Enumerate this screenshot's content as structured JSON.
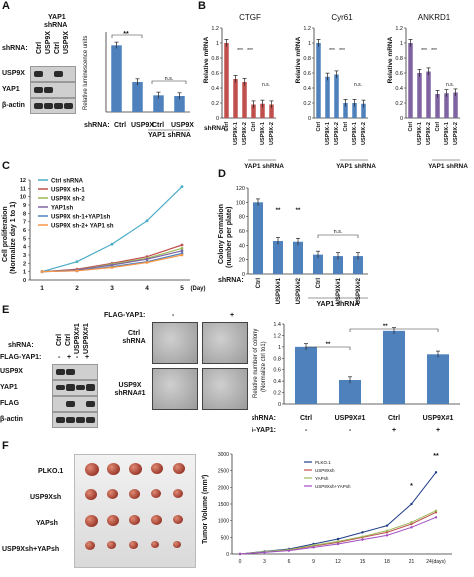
{
  "panels": {
    "A": "A",
    "B": "B",
    "C": "C",
    "D": "D",
    "E": "E",
    "F": "F"
  },
  "common": {
    "shrna": "shRNA:",
    "ctrl": "Ctrl",
    "usp9x": "USP9X",
    "yap1_shrna": "YAP1 shRNA",
    "flag_yap1": "FLAG-YAP1:",
    "sig": "**",
    "sig3": "***",
    "ns": "n.s."
  },
  "panelA": {
    "blot_header": [
      "YAP1",
      "shRNA"
    ],
    "lanes": [
      "Ctrl",
      "USP9X",
      "Ctrl",
      "USP9X"
    ],
    "bands": [
      "USP9X",
      "YAP1",
      "β-actin"
    ],
    "ylabel": "Relative luminescence units",
    "xlabels": [
      "Ctrl",
      "USP9X",
      "Ctrl",
      "USP9X"
    ]
  },
  "panelB": {
    "titles": [
      "CTGF",
      "Cyr61",
      "ANKRD1"
    ],
    "ylabel": "Relative mRNA",
    "xlabels": [
      "Ctrl",
      "USP9X-1",
      "USP9X-2",
      "Ctrl",
      "USP9X-1",
      "USP9X-2"
    ]
  },
  "panelC": {
    "ylabel": "Cell proliferation",
    "ylabel2": "(Normalize day 1 to 1)",
    "xaxis_suffix": "(Day)",
    "yticks": [
      "0",
      "1",
      "2",
      "3",
      "4",
      "5",
      "6",
      "7",
      "8",
      "9",
      "10",
      "11",
      "12"
    ],
    "xticks": [
      "1",
      "2",
      "3",
      "4",
      "5"
    ],
    "legend": [
      "Ctrl shRNA",
      "USP9X sh-1",
      "USP9X sh-2",
      "YAP1sh",
      "USP9X sh-1+YAP1sh",
      "USP9X sh-2+ YAP1 sh"
    ]
  },
  "panelD": {
    "ylabel": "Colony Formation",
    "ylabel2": "(number per plate)",
    "yticks": [
      "0",
      "20",
      "40",
      "60",
      "80",
      "100",
      "120"
    ],
    "xlabels": [
      "Ctrl",
      "USP9X#1",
      "USP9X#2",
      "Ctrl",
      "USP9X#1",
      "USP9X#2"
    ]
  },
  "panelE": {
    "blot_lanes": [
      "Ctrl",
      "Ctrl",
      "USP9X#1",
      "USP9X#1"
    ],
    "flag_signs": [
      "-",
      "+",
      "-",
      "+"
    ],
    "bands": [
      "USP9X",
      "YAP1",
      "FLAG",
      "β-actin"
    ],
    "micro_header": [
      "-",
      "+"
    ],
    "micro_rows": [
      "Ctrl shRNA",
      "USP9X shRNA#1"
    ],
    "ylabel": "Relative number of colony",
    "ylabel2": "(Normalize ctrl to1)",
    "yticks": [
      "0",
      "0.2",
      "0.4",
      "0.6",
      "0.8",
      "1",
      "1.2",
      "1.4"
    ],
    "xlabels": [
      "Ctrl",
      "USP9X#1",
      "Ctrl",
      "USP9X#1"
    ],
    "flag_row": [
      "-",
      "-",
      "+",
      "+"
    ]
  },
  "panelF": {
    "rows": [
      "PLKO.1",
      "USP9Xsh",
      "YAPsh",
      "USP9Xsh+YAPsh"
    ],
    "ylabel": "Tumor Volume (mm³)",
    "yticks": [
      "0",
      "500",
      "1000",
      "1500",
      "2000",
      "2500",
      "3000"
    ],
    "xticks": [
      "0",
      "3",
      "6",
      "9",
      "12",
      "15",
      "18",
      "21",
      "24(days)"
    ],
    "legend": [
      "PLKO.1",
      "USP9Xsh",
      "YAPsh",
      "USP9Xsh+YAPsh"
    ]
  },
  "colors": {
    "blue": "#4f81bd",
    "red": "#c0504d",
    "purple": "#8064a2",
    "green": "#9bbb59",
    "orange": "#f79646",
    "lightblue": "#4bacc6",
    "darkblue": "#1f3c88",
    "magenta": "#a14dc4"
  },
  "chart_data": [
    {
      "type": "bar",
      "id": "A",
      "categories": [
        "Ctrl",
        "USP9X",
        "Ctrl",
        "USP9X"
      ],
      "values": [
        1.0,
        0.45,
        0.25,
        0.24
      ],
      "ylim": [
        0,
        1.2
      ]
    },
    {
      "type": "bar",
      "id": "B-CTGF",
      "title": "CTGF",
      "categories": [
        "Ctrl",
        "USP9X-1",
        "USP9X-2",
        "Ctrl",
        "USP9X-1",
        "USP9X-2"
      ],
      "values": [
        1.0,
        0.52,
        0.48,
        0.18,
        0.19,
        0.18
      ],
      "ylim": [
        0,
        1.2
      ]
    },
    {
      "type": "bar",
      "id": "B-Cyr61",
      "title": "Cyr61",
      "categories": [
        "Ctrl",
        "USP9X-1",
        "USP9X-2",
        "Ctrl",
        "USP9X-1",
        "USP9X-2"
      ],
      "values": [
        1.0,
        0.55,
        0.58,
        0.2,
        0.2,
        0.19
      ],
      "ylim": [
        0,
        1.2
      ]
    },
    {
      "type": "bar",
      "id": "B-ANKRD1",
      "title": "ANKRD1",
      "categories": [
        "Ctrl",
        "USP9X-1",
        "USP9X-2",
        "Ctrl",
        "USP9X-1",
        "USP9X-2"
      ],
      "values": [
        1.0,
        0.6,
        0.62,
        0.32,
        0.33,
        0.34
      ],
      "ylim": [
        0,
        1.2
      ]
    },
    {
      "type": "line",
      "id": "C",
      "x": [
        1,
        2,
        3,
        4,
        5
      ],
      "series": [
        {
          "name": "Ctrl shRNA",
          "values": [
            1,
            2.2,
            4.3,
            7.1,
            11.2
          ]
        },
        {
          "name": "USP9X sh-1",
          "values": [
            1,
            1.3,
            2.0,
            2.8,
            4.2
          ]
        },
        {
          "name": "USP9X sh-2",
          "values": [
            1,
            1.2,
            1.9,
            2.6,
            3.8
          ]
        },
        {
          "name": "YAP1sh",
          "values": [
            1,
            1.2,
            1.8,
            2.5,
            3.5
          ]
        },
        {
          "name": "USP9X sh-1+YAP1sh",
          "values": [
            1,
            1.1,
            1.6,
            2.2,
            3.2
          ]
        },
        {
          "name": "USP9X sh-2+ YAP1 sh",
          "values": [
            1,
            1.1,
            1.5,
            2.1,
            3.0
          ]
        }
      ],
      "ylim": [
        0,
        12
      ]
    },
    {
      "type": "bar",
      "id": "D",
      "categories": [
        "Ctrl",
        "USP9X#1",
        "USP9X#2",
        "Ctrl",
        "USP9X#1",
        "USP9X#2"
      ],
      "values": [
        100,
        46,
        45,
        27,
        25,
        25
      ],
      "ylim": [
        0,
        120
      ]
    },
    {
      "type": "bar",
      "id": "E",
      "categories": [
        "Ctrl",
        "USP9X#1",
        "Ctrl",
        "USP9X#1"
      ],
      "values": [
        1.0,
        0.42,
        1.28,
        0.87
      ],
      "ylim": [
        0,
        1.4
      ]
    },
    {
      "type": "line",
      "id": "F",
      "x": [
        0,
        3,
        6,
        9,
        12,
        15,
        18,
        21,
        24
      ],
      "series": [
        {
          "name": "PLKO.1",
          "values": [
            0,
            80,
            150,
            300,
            450,
            650,
            850,
            1500,
            2450
          ]
        },
        {
          "name": "USP9Xsh",
          "values": [
            0,
            60,
            120,
            240,
            350,
            500,
            650,
            900,
            1250
          ]
        },
        {
          "name": "YAPsh",
          "values": [
            0,
            70,
            130,
            260,
            380,
            520,
            700,
            950,
            1300
          ]
        },
        {
          "name": "USP9Xsh+YAPsh",
          "values": [
            0,
            50,
            100,
            200,
            300,
            430,
            560,
            800,
            1100
          ]
        }
      ],
      "ylim": [
        0,
        3000
      ]
    }
  ]
}
